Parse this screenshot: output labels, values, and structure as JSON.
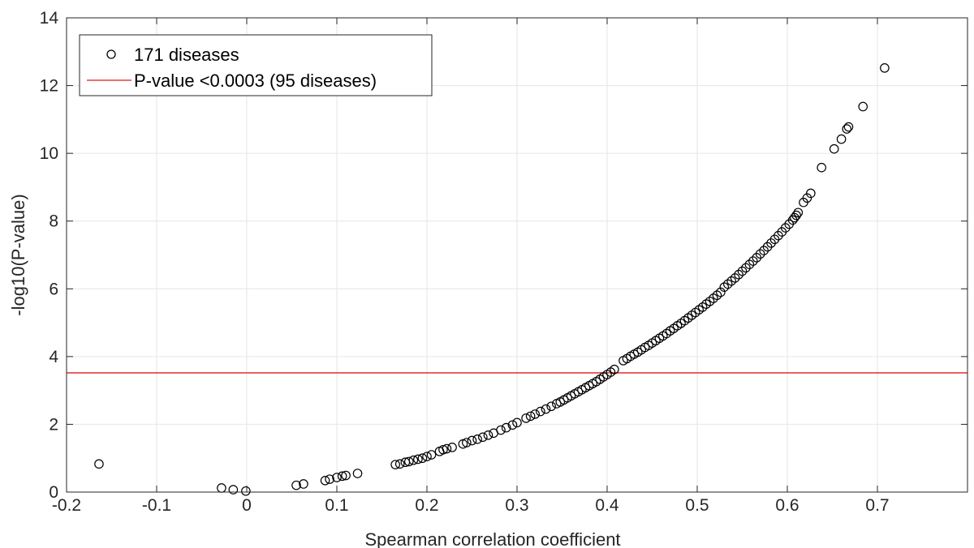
{
  "chart_data": {
    "type": "scatter",
    "title": "",
    "xlabel": "Spearman correlation coefficient",
    "ylabel": "-log10(P-value)",
    "xlim": [
      -0.2,
      0.8
    ],
    "ylim": [
      0,
      14
    ],
    "xticks": [
      -0.2,
      -0.1,
      0,
      0.1,
      0.2,
      0.3,
      0.4,
      0.5,
      0.6,
      0.7
    ],
    "xtick_labels": [
      "-0.2",
      "-0.1",
      "0",
      "0.1",
      "0.2",
      "0.3",
      "0.4",
      "0.5",
      "0.6",
      "0.7"
    ],
    "yticks": [
      0,
      2,
      4,
      6,
      8,
      10,
      12,
      14
    ],
    "ytick_labels": [
      "0",
      "2",
      "4",
      "6",
      "8",
      "10",
      "12",
      "14"
    ],
    "grid": true,
    "legend_position": "top-left",
    "series": [
      {
        "name": "171 diseases",
        "kind": "scatter",
        "marker": "open-circle",
        "color": "#000000",
        "points": [
          [
            -0.164,
            0.83
          ],
          [
            -0.028,
            0.12
          ],
          [
            -0.015,
            0.07
          ],
          [
            -0.001,
            0.03
          ],
          [
            0.055,
            0.2
          ],
          [
            0.063,
            0.24
          ],
          [
            0.087,
            0.34
          ],
          [
            0.092,
            0.38
          ],
          [
            0.1,
            0.43
          ],
          [
            0.106,
            0.47
          ],
          [
            0.11,
            0.49
          ],
          [
            0.123,
            0.55
          ],
          [
            0.165,
            0.81
          ],
          [
            0.17,
            0.83
          ],
          [
            0.176,
            0.88
          ],
          [
            0.18,
            0.9
          ],
          [
            0.185,
            0.94
          ],
          [
            0.19,
            0.97
          ],
          [
            0.195,
            1.0
          ],
          [
            0.2,
            1.05
          ],
          [
            0.205,
            1.1
          ],
          [
            0.214,
            1.2
          ],
          [
            0.218,
            1.25
          ],
          [
            0.222,
            1.28
          ],
          [
            0.228,
            1.32
          ],
          [
            0.24,
            1.42
          ],
          [
            0.244,
            1.46
          ],
          [
            0.25,
            1.52
          ],
          [
            0.256,
            1.56
          ],
          [
            0.262,
            1.62
          ],
          [
            0.268,
            1.68
          ],
          [
            0.274,
            1.74
          ],
          [
            0.282,
            1.83
          ],
          [
            0.288,
            1.9
          ],
          [
            0.295,
            1.98
          ],
          [
            0.3,
            2.05
          ],
          [
            0.31,
            2.18
          ],
          [
            0.315,
            2.24
          ],
          [
            0.32,
            2.3
          ],
          [
            0.326,
            2.38
          ],
          [
            0.332,
            2.45
          ],
          [
            0.338,
            2.53
          ],
          [
            0.344,
            2.61
          ],
          [
            0.348,
            2.66
          ],
          [
            0.352,
            2.72
          ],
          [
            0.356,
            2.78
          ],
          [
            0.36,
            2.84
          ],
          [
            0.364,
            2.9
          ],
          [
            0.368,
            2.96
          ],
          [
            0.372,
            3.02
          ],
          [
            0.376,
            3.08
          ],
          [
            0.38,
            3.14
          ],
          [
            0.384,
            3.2
          ],
          [
            0.388,
            3.26
          ],
          [
            0.392,
            3.33
          ],
          [
            0.396,
            3.4
          ],
          [
            0.4,
            3.47
          ],
          [
            0.404,
            3.54
          ],
          [
            0.408,
            3.62
          ],
          [
            0.418,
            3.88
          ],
          [
            0.422,
            3.94
          ],
          [
            0.426,
            4.01
          ],
          [
            0.43,
            4.07
          ],
          [
            0.434,
            4.13
          ],
          [
            0.438,
            4.2
          ],
          [
            0.442,
            4.27
          ],
          [
            0.446,
            4.33
          ],
          [
            0.45,
            4.4
          ],
          [
            0.454,
            4.47
          ],
          [
            0.458,
            4.54
          ],
          [
            0.462,
            4.61
          ],
          [
            0.466,
            4.68
          ],
          [
            0.47,
            4.76
          ],
          [
            0.474,
            4.83
          ],
          [
            0.478,
            4.91
          ],
          [
            0.482,
            4.98
          ],
          [
            0.486,
            5.06
          ],
          [
            0.49,
            5.14
          ],
          [
            0.494,
            5.22
          ],
          [
            0.498,
            5.3
          ],
          [
            0.502,
            5.38
          ],
          [
            0.506,
            5.46
          ],
          [
            0.51,
            5.55
          ],
          [
            0.514,
            5.63
          ],
          [
            0.518,
            5.72
          ],
          [
            0.522,
            5.81
          ],
          [
            0.526,
            5.9
          ],
          [
            0.53,
            6.05
          ],
          [
            0.534,
            6.14
          ],
          [
            0.538,
            6.23
          ],
          [
            0.542,
            6.32
          ],
          [
            0.546,
            6.42
          ],
          [
            0.55,
            6.52
          ],
          [
            0.554,
            6.62
          ],
          [
            0.558,
            6.72
          ],
          [
            0.562,
            6.82
          ],
          [
            0.566,
            6.92
          ],
          [
            0.57,
            7.03
          ],
          [
            0.574,
            7.13
          ],
          [
            0.578,
            7.24
          ],
          [
            0.582,
            7.35
          ],
          [
            0.586,
            7.46
          ],
          [
            0.59,
            7.57
          ],
          [
            0.594,
            7.68
          ],
          [
            0.598,
            7.8
          ],
          [
            0.602,
            7.91
          ],
          [
            0.606,
            8.03
          ],
          [
            0.608,
            8.1
          ],
          [
            0.61,
            8.17
          ],
          [
            0.612,
            8.25
          ],
          [
            0.618,
            8.55
          ],
          [
            0.622,
            8.68
          ],
          [
            0.626,
            8.82
          ],
          [
            0.638,
            9.58
          ],
          [
            0.652,
            10.13
          ],
          [
            0.66,
            10.42
          ],
          [
            0.666,
            10.72
          ],
          [
            0.668,
            10.78
          ],
          [
            0.684,
            11.38
          ],
          [
            0.708,
            12.52
          ]
        ]
      },
      {
        "name": "P-value <0.0003 (95 diseases)",
        "kind": "hline",
        "y": 3.52,
        "color": "#e3191c"
      }
    ]
  }
}
